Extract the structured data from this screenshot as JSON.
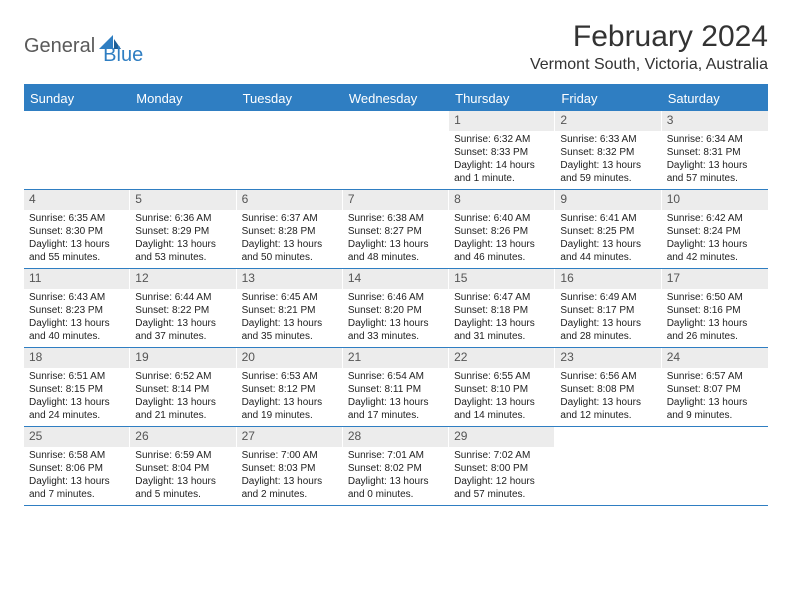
{
  "logo": {
    "text1": "General",
    "text2": "Blue"
  },
  "title": "February 2024",
  "location": "Vermont South, Victoria, Australia",
  "colors": {
    "accent": "#2f7ec2",
    "header_bg": "#2f7ec2",
    "header_text": "#ffffff",
    "daynum_bg": "#ececec",
    "border": "#2f7ec2"
  },
  "weekdays": [
    "Sunday",
    "Monday",
    "Tuesday",
    "Wednesday",
    "Thursday",
    "Friday",
    "Saturday"
  ],
  "weeks": [
    [
      null,
      null,
      null,
      null,
      {
        "d": "1",
        "sr": "Sunrise: 6:32 AM",
        "ss": "Sunset: 8:33 PM",
        "dl": "Daylight: 14 hours and 1 minute."
      },
      {
        "d": "2",
        "sr": "Sunrise: 6:33 AM",
        "ss": "Sunset: 8:32 PM",
        "dl": "Daylight: 13 hours and 59 minutes."
      },
      {
        "d": "3",
        "sr": "Sunrise: 6:34 AM",
        "ss": "Sunset: 8:31 PM",
        "dl": "Daylight: 13 hours and 57 minutes."
      }
    ],
    [
      {
        "d": "4",
        "sr": "Sunrise: 6:35 AM",
        "ss": "Sunset: 8:30 PM",
        "dl": "Daylight: 13 hours and 55 minutes."
      },
      {
        "d": "5",
        "sr": "Sunrise: 6:36 AM",
        "ss": "Sunset: 8:29 PM",
        "dl": "Daylight: 13 hours and 53 minutes."
      },
      {
        "d": "6",
        "sr": "Sunrise: 6:37 AM",
        "ss": "Sunset: 8:28 PM",
        "dl": "Daylight: 13 hours and 50 minutes."
      },
      {
        "d": "7",
        "sr": "Sunrise: 6:38 AM",
        "ss": "Sunset: 8:27 PM",
        "dl": "Daylight: 13 hours and 48 minutes."
      },
      {
        "d": "8",
        "sr": "Sunrise: 6:40 AM",
        "ss": "Sunset: 8:26 PM",
        "dl": "Daylight: 13 hours and 46 minutes."
      },
      {
        "d": "9",
        "sr": "Sunrise: 6:41 AM",
        "ss": "Sunset: 8:25 PM",
        "dl": "Daylight: 13 hours and 44 minutes."
      },
      {
        "d": "10",
        "sr": "Sunrise: 6:42 AM",
        "ss": "Sunset: 8:24 PM",
        "dl": "Daylight: 13 hours and 42 minutes."
      }
    ],
    [
      {
        "d": "11",
        "sr": "Sunrise: 6:43 AM",
        "ss": "Sunset: 8:23 PM",
        "dl": "Daylight: 13 hours and 40 minutes."
      },
      {
        "d": "12",
        "sr": "Sunrise: 6:44 AM",
        "ss": "Sunset: 8:22 PM",
        "dl": "Daylight: 13 hours and 37 minutes."
      },
      {
        "d": "13",
        "sr": "Sunrise: 6:45 AM",
        "ss": "Sunset: 8:21 PM",
        "dl": "Daylight: 13 hours and 35 minutes."
      },
      {
        "d": "14",
        "sr": "Sunrise: 6:46 AM",
        "ss": "Sunset: 8:20 PM",
        "dl": "Daylight: 13 hours and 33 minutes."
      },
      {
        "d": "15",
        "sr": "Sunrise: 6:47 AM",
        "ss": "Sunset: 8:18 PM",
        "dl": "Daylight: 13 hours and 31 minutes."
      },
      {
        "d": "16",
        "sr": "Sunrise: 6:49 AM",
        "ss": "Sunset: 8:17 PM",
        "dl": "Daylight: 13 hours and 28 minutes."
      },
      {
        "d": "17",
        "sr": "Sunrise: 6:50 AM",
        "ss": "Sunset: 8:16 PM",
        "dl": "Daylight: 13 hours and 26 minutes."
      }
    ],
    [
      {
        "d": "18",
        "sr": "Sunrise: 6:51 AM",
        "ss": "Sunset: 8:15 PM",
        "dl": "Daylight: 13 hours and 24 minutes."
      },
      {
        "d": "19",
        "sr": "Sunrise: 6:52 AM",
        "ss": "Sunset: 8:14 PM",
        "dl": "Daylight: 13 hours and 21 minutes."
      },
      {
        "d": "20",
        "sr": "Sunrise: 6:53 AM",
        "ss": "Sunset: 8:12 PM",
        "dl": "Daylight: 13 hours and 19 minutes."
      },
      {
        "d": "21",
        "sr": "Sunrise: 6:54 AM",
        "ss": "Sunset: 8:11 PM",
        "dl": "Daylight: 13 hours and 17 minutes."
      },
      {
        "d": "22",
        "sr": "Sunrise: 6:55 AM",
        "ss": "Sunset: 8:10 PM",
        "dl": "Daylight: 13 hours and 14 minutes."
      },
      {
        "d": "23",
        "sr": "Sunrise: 6:56 AM",
        "ss": "Sunset: 8:08 PM",
        "dl": "Daylight: 13 hours and 12 minutes."
      },
      {
        "d": "24",
        "sr": "Sunrise: 6:57 AM",
        "ss": "Sunset: 8:07 PM",
        "dl": "Daylight: 13 hours and 9 minutes."
      }
    ],
    [
      {
        "d": "25",
        "sr": "Sunrise: 6:58 AM",
        "ss": "Sunset: 8:06 PM",
        "dl": "Daylight: 13 hours and 7 minutes."
      },
      {
        "d": "26",
        "sr": "Sunrise: 6:59 AM",
        "ss": "Sunset: 8:04 PM",
        "dl": "Daylight: 13 hours and 5 minutes."
      },
      {
        "d": "27",
        "sr": "Sunrise: 7:00 AM",
        "ss": "Sunset: 8:03 PM",
        "dl": "Daylight: 13 hours and 2 minutes."
      },
      {
        "d": "28",
        "sr": "Sunrise: 7:01 AM",
        "ss": "Sunset: 8:02 PM",
        "dl": "Daylight: 13 hours and 0 minutes."
      },
      {
        "d": "29",
        "sr": "Sunrise: 7:02 AM",
        "ss": "Sunset: 8:00 PM",
        "dl": "Daylight: 12 hours and 57 minutes."
      },
      null,
      null
    ]
  ]
}
